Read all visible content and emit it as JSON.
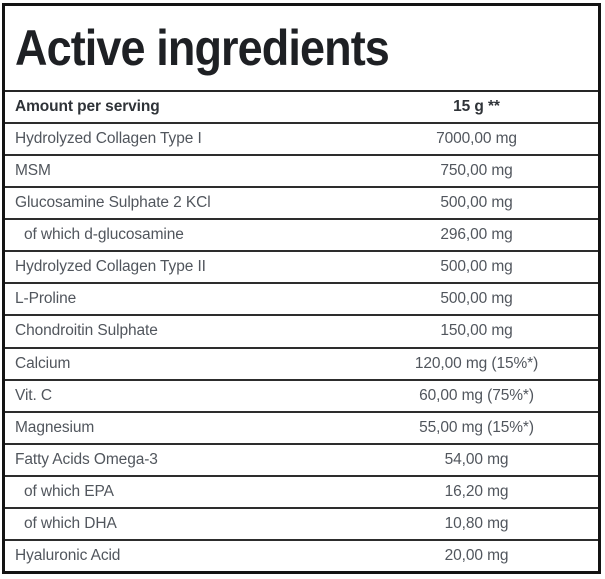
{
  "title": "Active ingredients",
  "table": {
    "header": {
      "label": "Amount per serving",
      "value": "15 g **"
    },
    "rows": [
      {
        "label": "Hydrolyzed Collagen Type I",
        "value": "7000,00 mg",
        "indent": false
      },
      {
        "label": "MSM",
        "value": "750,00 mg",
        "indent": false
      },
      {
        "label": "Glucosamine Sulphate 2 KCl",
        "value": "500,00 mg",
        "indent": false
      },
      {
        "label": "of which d-glucosamine",
        "value": "296,00 mg",
        "indent": true
      },
      {
        "label": "Hydrolyzed Collagen Type II",
        "value": "500,00 mg",
        "indent": false
      },
      {
        "label": "L-Proline",
        "value": "500,00 mg",
        "indent": false
      },
      {
        "label": "Chondroitin Sulphate",
        "value": "150,00 mg",
        "indent": false
      },
      {
        "label": "Calcium",
        "value": "120,00 mg (15%*)",
        "indent": false
      },
      {
        "label": "Vit. C",
        "value": "60,00 mg (75%*)",
        "indent": false
      },
      {
        "label": "Magnesium",
        "value": "55,00 mg (15%*)",
        "indent": false
      },
      {
        "label": "Fatty Acids Omega-3",
        "value": "54,00 mg",
        "indent": false
      },
      {
        "label": "of which EPA",
        "value": "16,20 mg",
        "indent": true
      },
      {
        "label": "of which DHA",
        "value": "10,80 mg",
        "indent": true
      },
      {
        "label": "Hyaluronic Acid",
        "value": "20,00 mg",
        "indent": false
      }
    ]
  },
  "colors": {
    "background": "#ffffff",
    "outer_border": "#131313",
    "row_separator": "#2d2d2d",
    "title_text": "#1e2024",
    "header_text": "#2f3338",
    "body_text": "#51565d"
  }
}
